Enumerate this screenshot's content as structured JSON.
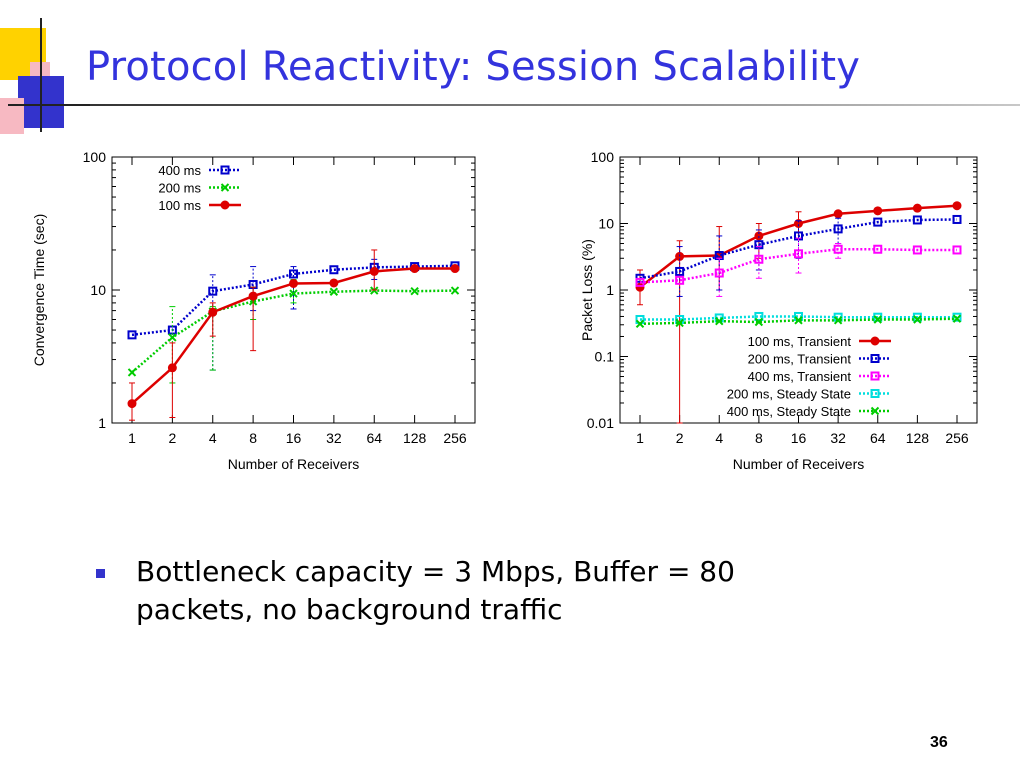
{
  "title": "Protocol Reactivity: Session Scalability",
  "bullet": "Bottleneck capacity = 3 Mbps, Buffer = 80 packets, no background traffic",
  "page_number": "36",
  "colors": {
    "title": "#3333dd",
    "accent_yellow": "#ffd200",
    "accent_blue": "#3333cc",
    "accent_pink": "#f7b9c2"
  },
  "chart_data": [
    {
      "type": "line",
      "xlabel": "Number of Receivers",
      "ylabel": "Convergence Time (sec)",
      "x_tick_labels": [
        "1",
        "2",
        "4",
        "8",
        "16",
        "32",
        "64",
        "128",
        "256"
      ],
      "y_scale": "log",
      "ylim": [
        1,
        100
      ],
      "y_ticks": [
        1,
        10,
        100
      ],
      "y_tick_labels": [
        "1",
        "10",
        "100"
      ],
      "grid": false,
      "legend_position": "top-left",
      "series": [
        {
          "name": "400 ms",
          "color": "#0000cc",
          "style": "dotted",
          "marker": "square",
          "values": [
            4.6,
            5.0,
            9.8,
            11.0,
            13.2,
            14.2,
            14.8,
            15.0,
            15.2
          ],
          "err": [
            null,
            null,
            [
              2.5,
              13.0
            ],
            [
              7.0,
              15.0
            ],
            [
              7.2,
              15.0
            ],
            null,
            [
              12.0,
              17.0
            ],
            null,
            null
          ]
        },
        {
          "name": "200 ms",
          "color": "#00cc00",
          "style": "dotted",
          "marker": "cross",
          "values": [
            2.4,
            4.4,
            6.9,
            8.2,
            9.4,
            9.7,
            9.9,
            9.8,
            9.9
          ],
          "err": [
            null,
            [
              2.0,
              7.5
            ],
            [
              2.5,
              7.5
            ],
            [
              6.0,
              10.5
            ],
            [
              8.0,
              12.0
            ],
            null,
            null,
            null,
            null
          ]
        },
        {
          "name": "100 ms",
          "color": "#dd0000",
          "style": "solid",
          "marker": "circle",
          "values": [
            1.4,
            2.6,
            6.8,
            9.0,
            11.2,
            11.3,
            13.8,
            14.5,
            14.5
          ],
          "err": [
            [
              1.05,
              2.0
            ],
            [
              1.1,
              4.0
            ],
            [
              4.5,
              8.0
            ],
            [
              3.5,
              10.5
            ],
            null,
            null,
            [
              10.0,
              20.0
            ],
            null,
            null
          ]
        }
      ]
    },
    {
      "type": "line",
      "xlabel": "Number of Receivers",
      "ylabel": "Packet Loss (%)",
      "x_tick_labels": [
        "1",
        "2",
        "4",
        "8",
        "16",
        "32",
        "64",
        "128",
        "256"
      ],
      "y_scale": "log",
      "ylim": [
        0.01,
        100
      ],
      "y_ticks": [
        0.01,
        0.1,
        1,
        10,
        100
      ],
      "y_tick_labels": [
        "0.01",
        "0.1",
        "1",
        "10",
        "100"
      ],
      "grid": false,
      "legend_position": "bottom-right",
      "series": [
        {
          "name": "100 ms, Transient",
          "color": "#dd0000",
          "style": "solid",
          "marker": "circle",
          "values": [
            1.1,
            3.2,
            3.3,
            6.5,
            10.0,
            14.0,
            15.5,
            17.0,
            18.5
          ],
          "err": [
            [
              0.6,
              2.0
            ],
            [
              0.01,
              5.5
            ],
            [
              1.0,
              9.0
            ],
            [
              3.0,
              10.0
            ],
            [
              6.0,
              15.0
            ],
            null,
            null,
            null,
            null
          ]
        },
        {
          "name": "200 ms, Transient",
          "color": "#0000cc",
          "style": "dotted",
          "marker": "square",
          "values": [
            1.5,
            1.9,
            3.3,
            4.8,
            6.5,
            8.3,
            10.5,
            11.3,
            11.5
          ],
          "err": [
            null,
            [
              0.8,
              4.5
            ],
            [
              1.0,
              6.5
            ],
            [
              2.0,
              8.0
            ],
            [
              3.0,
              11.0
            ],
            [
              5.0,
              12.0
            ],
            null,
            null,
            null
          ]
        },
        {
          "name": "400 ms, Transient",
          "color": "#ff00ff",
          "style": "dotted",
          "marker": "square",
          "values": [
            1.3,
            1.4,
            1.8,
            2.9,
            3.5,
            4.1,
            4.1,
            4.0,
            4.0
          ],
          "err": [
            null,
            null,
            [
              0.8,
              3.0
            ],
            [
              1.5,
              4.5
            ],
            [
              1.8,
              6.0
            ],
            [
              3.0,
              5.0
            ],
            null,
            null,
            null
          ]
        },
        {
          "name": "200 ms, Steady State",
          "color": "#00dddd",
          "style": "dotted",
          "marker": "square",
          "values": [
            0.36,
            0.36,
            0.38,
            0.4,
            0.4,
            0.39,
            0.39,
            0.39,
            0.39
          ],
          "err": [
            null,
            null,
            null,
            null,
            null,
            null,
            null,
            null,
            null
          ]
        },
        {
          "name": "400 ms, Steady State",
          "color": "#00cc00",
          "style": "dotted",
          "marker": "cross",
          "values": [
            0.31,
            0.32,
            0.34,
            0.33,
            0.35,
            0.35,
            0.36,
            0.36,
            0.37
          ],
          "err": [
            null,
            null,
            null,
            null,
            null,
            null,
            null,
            null,
            null
          ]
        }
      ]
    }
  ]
}
